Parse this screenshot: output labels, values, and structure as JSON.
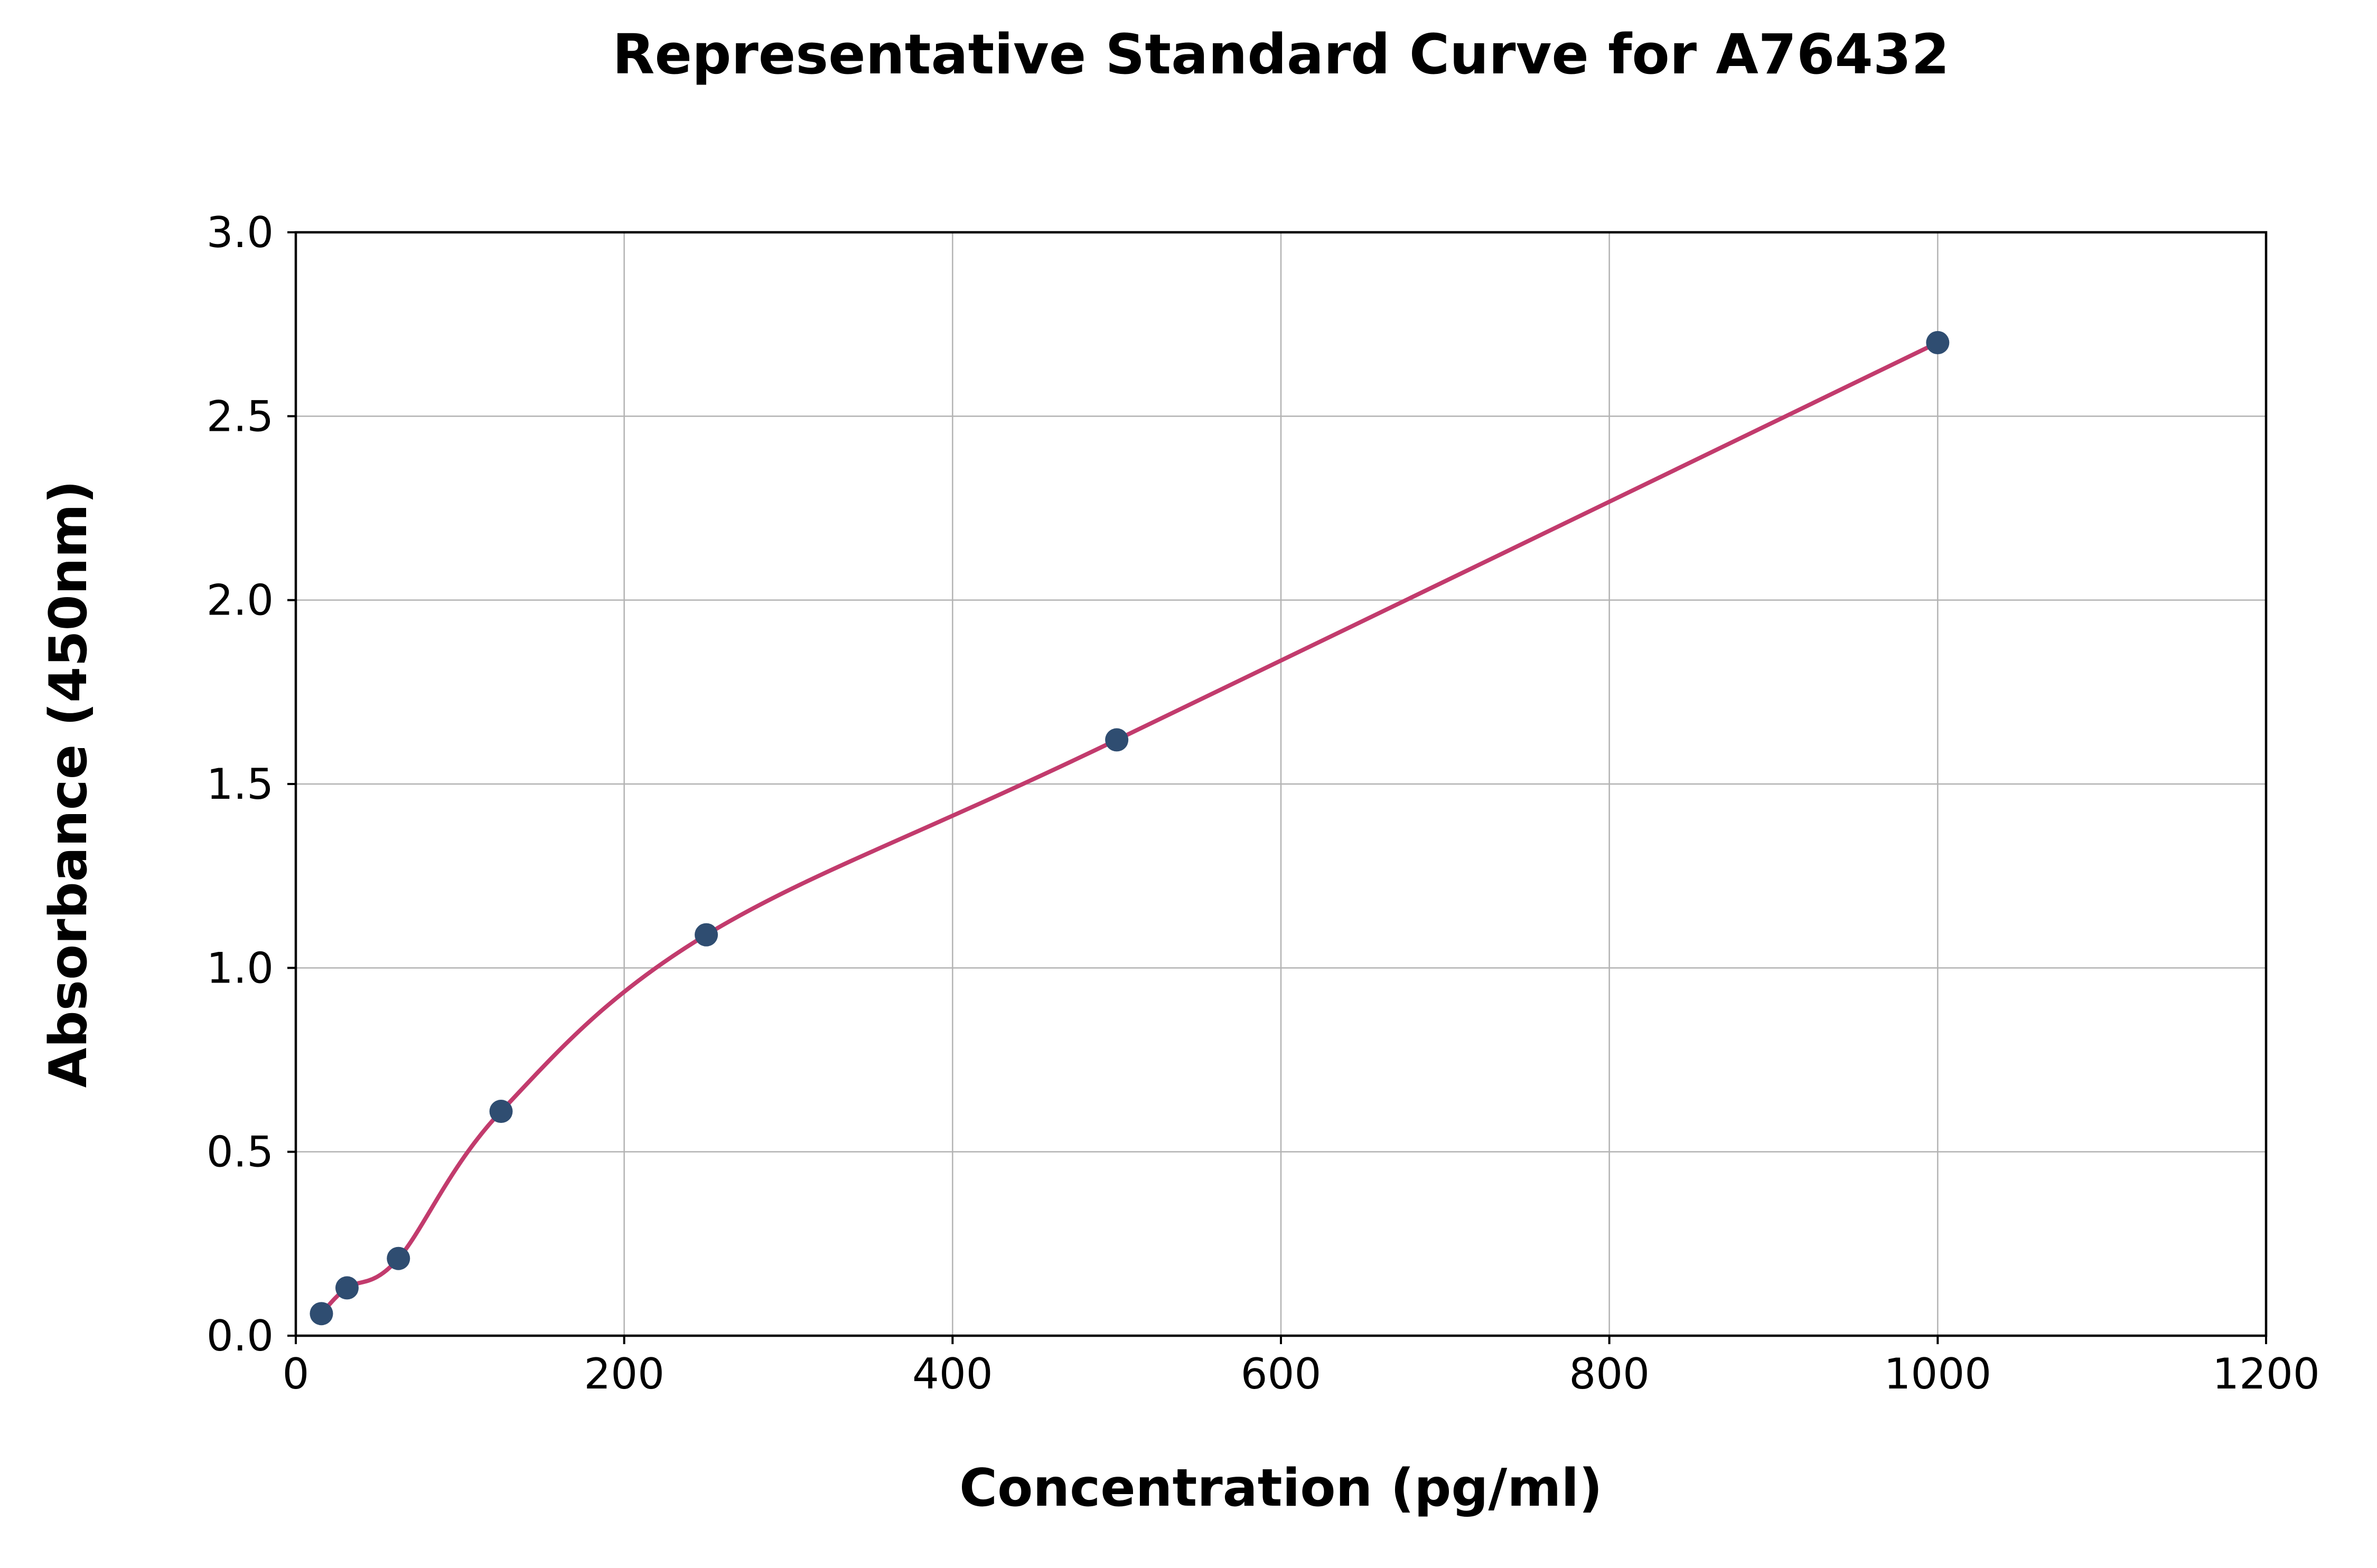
{
  "chart_data": {
    "type": "scatter",
    "title": "Representative Standard Curve for A76432",
    "xlabel": "Concentration (pg/ml)",
    "ylabel": "Absorbance (450nm)",
    "xlim": [
      0,
      1200
    ],
    "ylim": [
      0,
      3
    ],
    "x_ticks": [
      0,
      200,
      400,
      600,
      800,
      1000,
      1200
    ],
    "x_tick_labels": [
      "0",
      "200",
      "400",
      "600",
      "800",
      "1000",
      "1200"
    ],
    "y_ticks": [
      0,
      0.5,
      1,
      1.5,
      2,
      2.5,
      3
    ],
    "y_tick_labels": [
      "0.0",
      "0.5",
      "1.0",
      "1.5",
      "2.0",
      "2.5",
      "3.0"
    ],
    "grid": true,
    "legend_position": "none",
    "series": [
      {
        "name": "standard-points",
        "marker": "circle",
        "color": "#2f4d71",
        "points": [
          [
            15.6,
            0.06
          ],
          [
            31.2,
            0.13
          ],
          [
            62.5,
            0.21
          ],
          [
            125,
            0.61
          ],
          [
            250,
            1.09
          ],
          [
            500,
            1.62
          ],
          [
            1000,
            2.7
          ]
        ]
      }
    ],
    "fit_curve": {
      "name": "fitted-standard-curve",
      "color": "#c23b6d",
      "through_points": true
    },
    "colors": {
      "grid": "#b3b3b3",
      "axis": "#000000",
      "background": "#ffffff"
    }
  }
}
